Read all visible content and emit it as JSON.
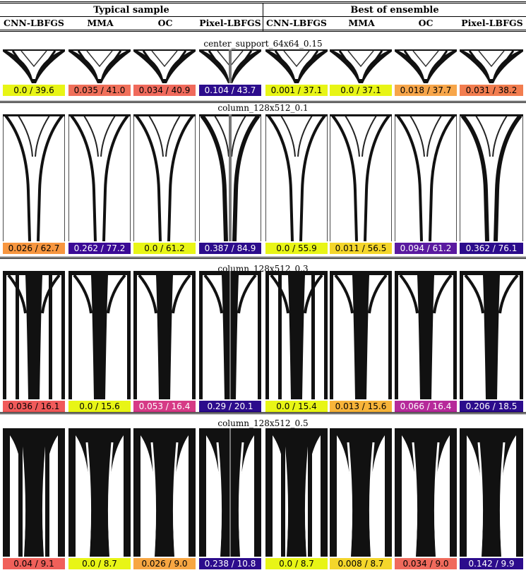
{
  "header": {
    "groups": [
      "Typical sample",
      "Best of ensemble"
    ],
    "columns": [
      "CNN-LBFGS",
      "MMA",
      "OC",
      "Pixel-LBFGS",
      "CNN-LBFGS",
      "MMA",
      "OC",
      "Pixel-LBFGS"
    ]
  },
  "sections": [
    {
      "title": "center_support_64x64_0.15",
      "labels": [
        "0.0 / 39.6",
        "0.035 / 41.0",
        "0.034 / 40.9",
        "0.104 / 43.7",
        "0.001 / 37.1",
        "0.0 / 37.1",
        "0.018 / 37.7",
        "0.031 / 38.2"
      ],
      "colors": [
        "#e8f516",
        "#f0705a",
        "#f06a5c",
        "#2c0c8c",
        "#e8f516",
        "#e8f516",
        "#f7a64a",
        "#f27d4f"
      ],
      "text_colors": [
        "#000",
        "#000",
        "#000",
        "#fff",
        "#000",
        "#000",
        "#000",
        "#000"
      ]
    },
    {
      "title": "column_128x512_0.1",
      "labels": [
        "0.026 / 62.7",
        "0.262 / 77.2",
        "0.0 / 61.2",
        "0.387 / 84.9",
        "0.0 / 55.9",
        "0.011 / 56.5",
        "0.094 / 61.2",
        "0.362 / 76.1"
      ],
      "colors": [
        "#f7963f",
        "#3b0a96",
        "#e8f516",
        "#2c0c8c",
        "#e8f516",
        "#f4d62b",
        "#5a1aa0",
        "#2c0c8c"
      ],
      "text_colors": [
        "#000",
        "#fff",
        "#000",
        "#fff",
        "#000",
        "#000",
        "#fff",
        "#fff"
      ]
    },
    {
      "title": "column_128x512_0.3",
      "labels": [
        "0.036 / 16.1",
        "0.0 / 15.6",
        "0.053 / 16.4",
        "0.29 / 20.1",
        "0.0 / 15.4",
        "0.013 / 15.6",
        "0.066 / 16.4",
        "0.206 / 18.5"
      ],
      "colors": [
        "#f05a5a",
        "#e8f516",
        "#d63a86",
        "#2c0c8c",
        "#e8f516",
        "#f7b43a",
        "#b62a9a",
        "#2c0c8c"
      ],
      "text_colors": [
        "#000",
        "#000",
        "#fff",
        "#fff",
        "#000",
        "#000",
        "#fff",
        "#fff"
      ]
    },
    {
      "title": "column_128x512_0.5",
      "labels": [
        "0.04 / 9.1",
        "0.0 / 8.7",
        "0.026 / 9.0",
        "0.238 / 10.8",
        "0.0 / 8.7",
        "0.008 / 8.7",
        "0.034 / 9.0",
        "0.142 / 9.9"
      ],
      "colors": [
        "#f0605a",
        "#e8f516",
        "#f7a642",
        "#2c0c8c",
        "#e8f516",
        "#f4d62b",
        "#f06a5c",
        "#2c0c8c"
      ],
      "text_colors": [
        "#000",
        "#000",
        "#000",
        "#fff",
        "#000",
        "#000",
        "#000",
        "#fff"
      ]
    }
  ]
}
